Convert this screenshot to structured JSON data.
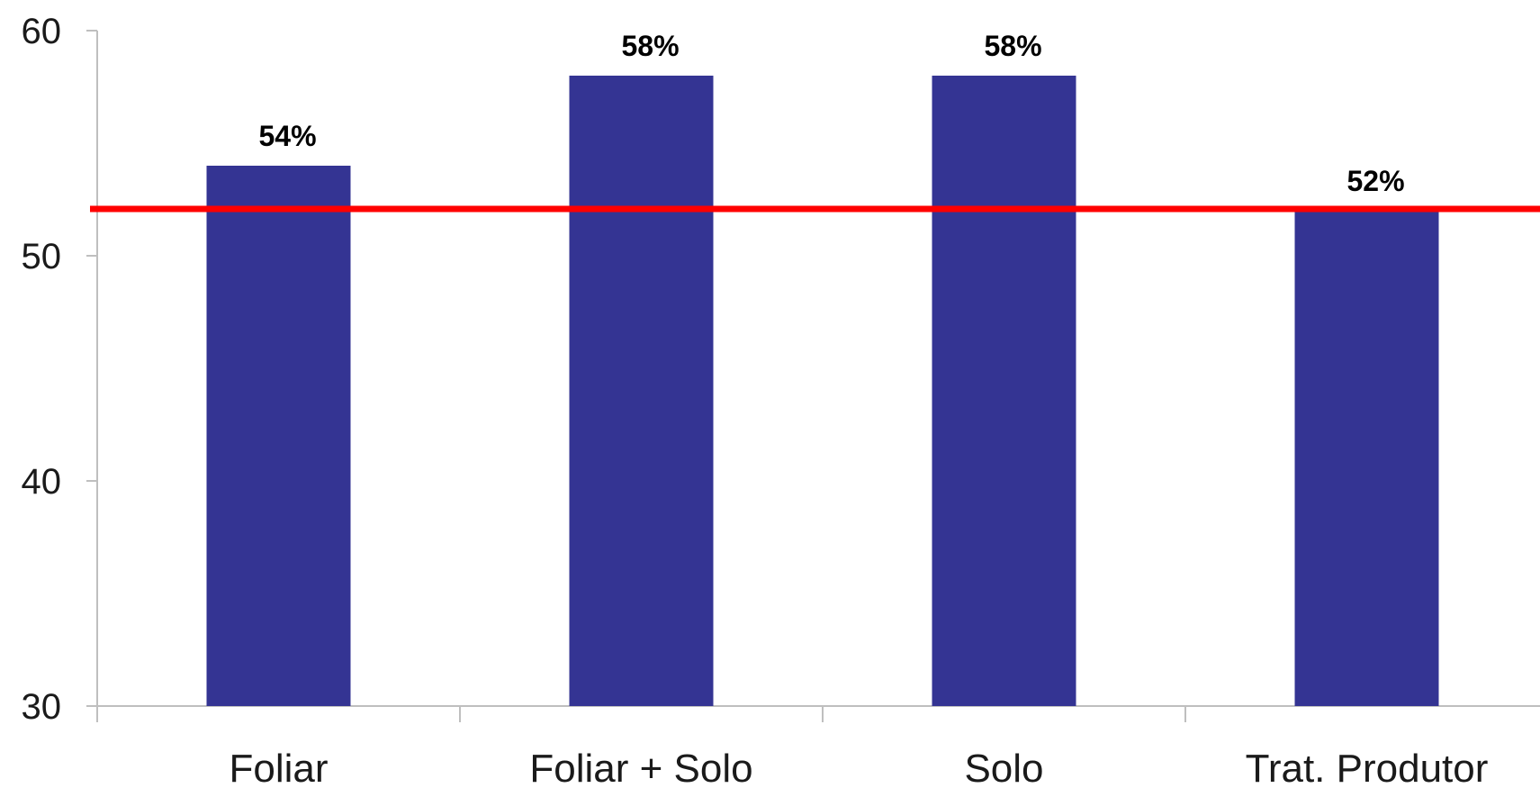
{
  "chart_data": {
    "type": "bar",
    "categories": [
      "Foliar",
      "Foliar + Solo",
      "Solo",
      "Trat. Produtor"
    ],
    "values": [
      54,
      58,
      58,
      52
    ],
    "data_labels": [
      "54%",
      "58%",
      "58%",
      "52%"
    ],
    "yticks": [
      30,
      40,
      50,
      60
    ],
    "ylim": [
      30,
      60
    ],
    "reference_line": 52,
    "grid": false,
    "legend": "none",
    "colors": {
      "bar": "#343493",
      "reference_line": "#ff0000",
      "axis": "#bfbfbf"
    }
  }
}
